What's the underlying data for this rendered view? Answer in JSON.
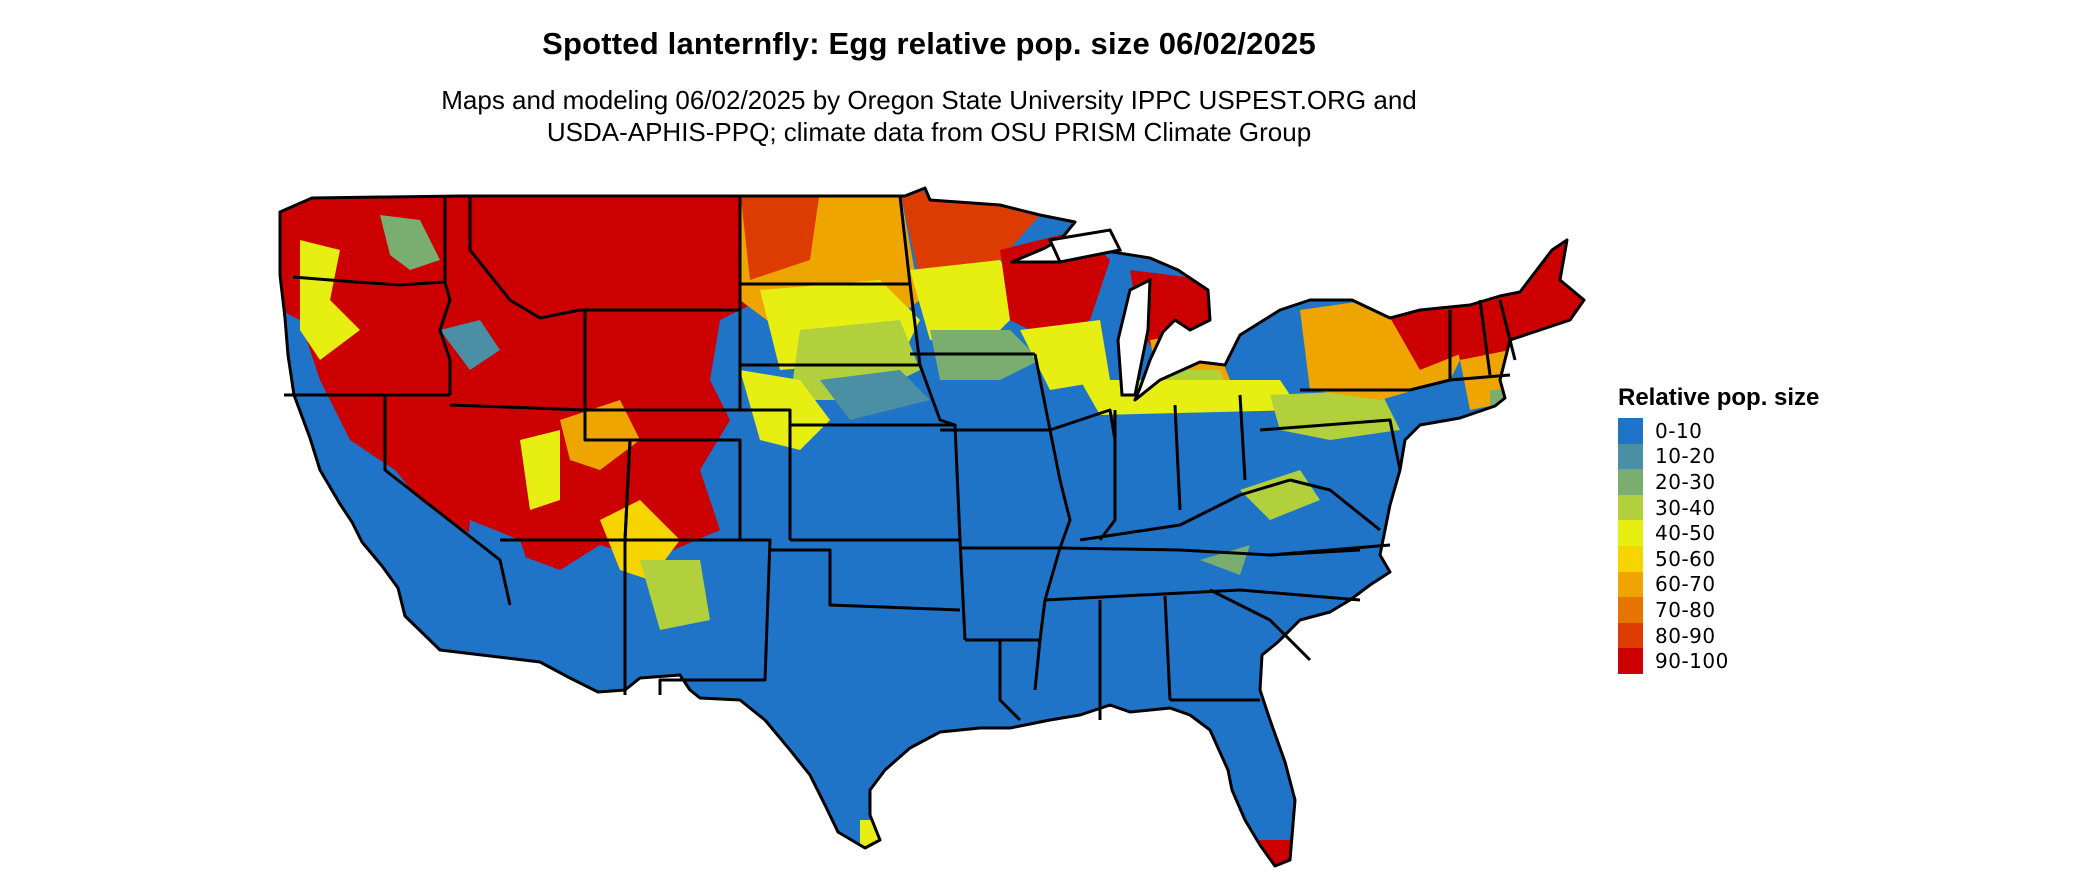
{
  "map": {
    "title": "Spotted lanternfly: Egg relative pop. size 06/02/2025",
    "subtitle_line1": "Maps and modeling 06/02/2025 by Oregon State University IPPC USPEST.ORG and",
    "subtitle_line2": "USDA-APHIS-PPQ; climate data from OSU PRISM Climate Group"
  },
  "legend": {
    "title": "Relative pop. size",
    "items": [
      {
        "label": "0-10",
        "color": "#1f74c8"
      },
      {
        "label": "10-20",
        "color": "#4a8fa3"
      },
      {
        "label": "20-30",
        "color": "#7aad70"
      },
      {
        "label": "30-40",
        "color": "#b1d03c"
      },
      {
        "label": "40-50",
        "color": "#e6ee12"
      },
      {
        "label": "50-60",
        "color": "#f6d400"
      },
      {
        "label": "60-70",
        "color": "#efa500"
      },
      {
        "label": "70-80",
        "color": "#e87400"
      },
      {
        "label": "80-90",
        "color": "#dd3c00"
      },
      {
        "label": "90-100",
        "color": "#cc0000"
      }
    ]
  }
}
